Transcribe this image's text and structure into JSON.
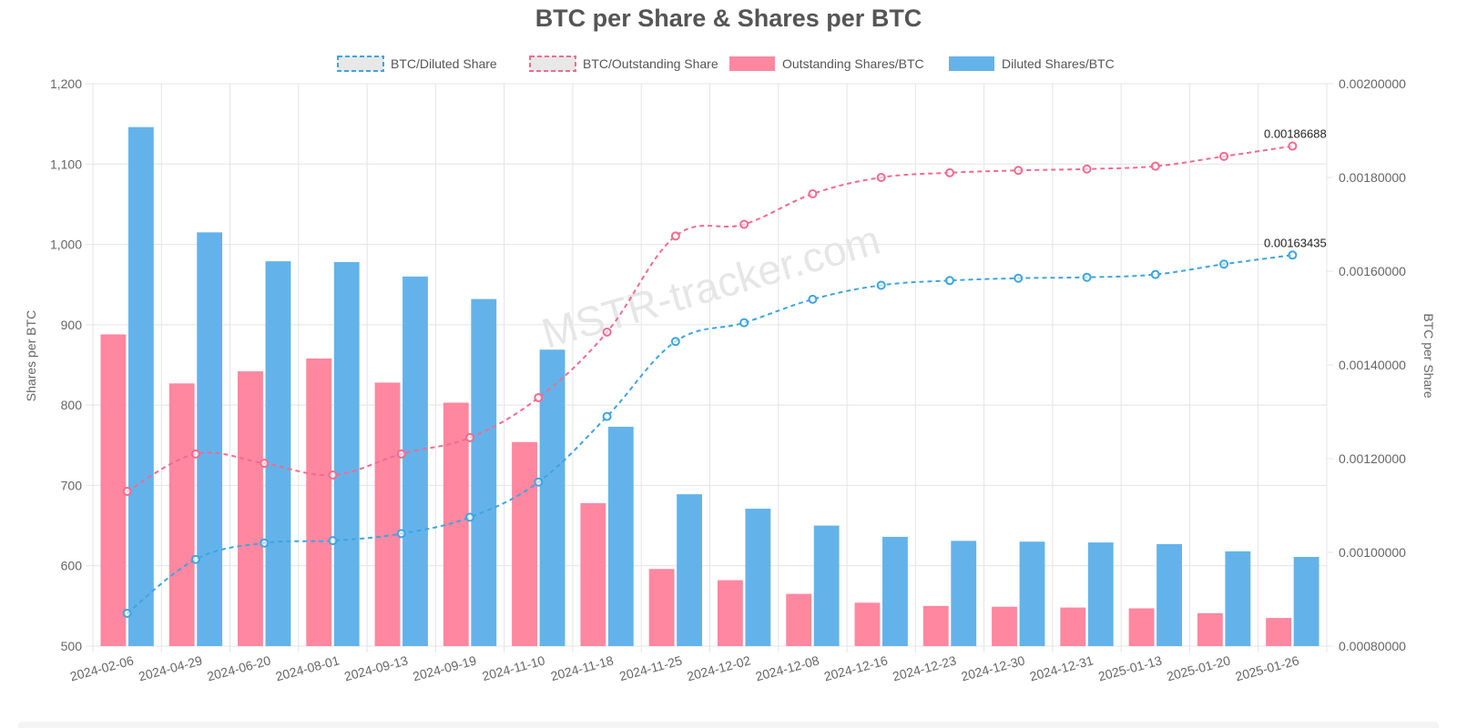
{
  "chart_data": {
    "type": "bar",
    "title": "BTC per Share & Shares per BTC",
    "watermark": "MSTR-tracker.com",
    "categories": [
      "2024-02-06",
      "2024-04-29",
      "2024-06-20",
      "2024-08-01",
      "2024-09-13",
      "2024-09-19",
      "2024-11-10",
      "2024-11-18",
      "2024-11-25",
      "2024-12-02",
      "2024-12-08",
      "2024-12-16",
      "2024-12-23",
      "2024-12-30",
      "2024-12-31",
      "2025-01-13",
      "2025-01-20",
      "2025-01-26"
    ],
    "y_left": {
      "label": "Shares per BTC",
      "min": 500,
      "max": 1200,
      "ticks": [
        "500",
        "600",
        "700",
        "800",
        "900",
        "1,000",
        "1,100",
        "1,200"
      ]
    },
    "y_right": {
      "label": "BTC per Share",
      "min": 0.0008,
      "max": 0.002,
      "ticks": [
        "0.00080000",
        "0.00100000",
        "0.00120000",
        "0.00140000",
        "0.00160000",
        "0.00180000",
        "0.00200000"
      ]
    },
    "grid": true,
    "legend_position": "top",
    "series": [
      {
        "name": "BTC/Diluted Share",
        "kind": "line",
        "axis": "right",
        "dashed": true,
        "color": "#3da5e0",
        "values": [
          0.00087,
          0.000985,
          0.00102,
          0.001025,
          0.00104,
          0.001075,
          0.00115,
          0.00129,
          0.00145,
          0.00149,
          0.00154,
          0.00157,
          0.00158,
          0.001585,
          0.001587,
          0.001593,
          0.001615,
          0.00163435
        ],
        "end_label": "0.00163435"
      },
      {
        "name": "BTC/Outstanding Share",
        "kind": "line",
        "axis": "right",
        "dashed": true,
        "color": "#f26b8e",
        "values": [
          0.00113,
          0.00121,
          0.00119,
          0.001165,
          0.00121,
          0.001245,
          0.00133,
          0.00147,
          0.001675,
          0.0017,
          0.001765,
          0.0018,
          0.00181,
          0.001815,
          0.001818,
          0.001824,
          0.001845,
          0.00186688
        ],
        "end_label": "0.00186688"
      },
      {
        "name": "Outstanding Shares/BTC",
        "kind": "bar",
        "axis": "left",
        "color": "#ff87a0",
        "values": [
          888,
          827,
          842,
          858,
          828,
          803,
          754,
          678,
          596,
          582,
          565,
          554,
          550,
          549,
          548,
          547,
          541,
          535
        ]
      },
      {
        "name": "Diluted Shares/BTC",
        "kind": "bar",
        "axis": "left",
        "color": "#63b3ea",
        "values": [
          1146,
          1015,
          979,
          978,
          960,
          932,
          869,
          773,
          689,
          671,
          650,
          636,
          631,
          630,
          629,
          627,
          618,
          611
        ]
      }
    ]
  }
}
